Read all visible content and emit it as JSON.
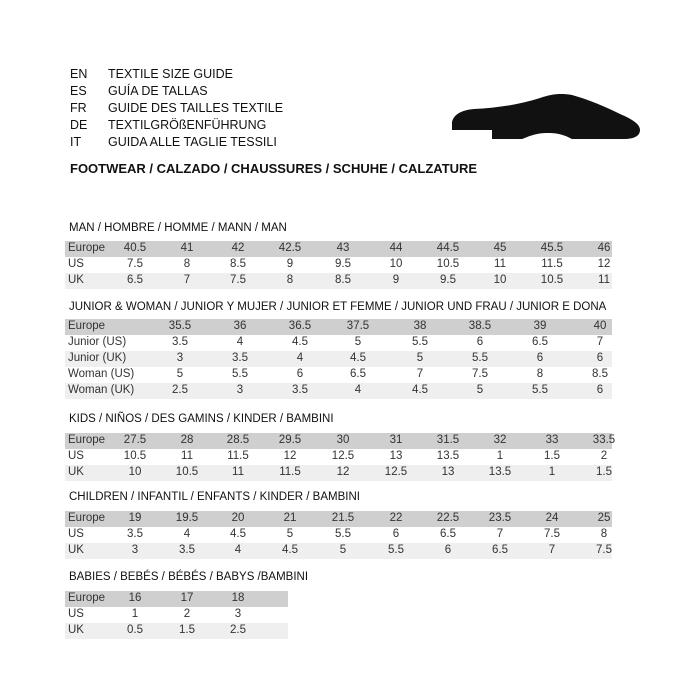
{
  "header": {
    "languages": [
      {
        "code": "EN",
        "name": "TEXTILE SIZE GUIDE"
      },
      {
        "code": "ES",
        "name": "GUÍA DE TALLAS"
      },
      {
        "code": "FR",
        "name": "GUIDE DES TAILLES TEXTILE"
      },
      {
        "code": "DE",
        "name": "TEXTILGRÖßENFÜHRUNG"
      },
      {
        "code": "IT",
        "name": "GUIDA ALLE TAGLIE TESSILI"
      }
    ],
    "footwear": "FOOTWEAR / CALZADO / CHAUSSURES / SCHUHE / CALZATURE",
    "icon": "shoe-silhouette-icon"
  },
  "colors": {
    "header_row": "#cfcfcf",
    "alt_row": "#efefef"
  },
  "sections": [
    {
      "title": "MAN / HOMBRE / HOMME / MANN / MAN",
      "rows": [
        {
          "label": "Europe",
          "values": [
            "40.5",
            "41",
            "42",
            "42.5",
            "43",
            "44",
            "44.5",
            "45",
            "45.5",
            "46"
          ]
        },
        {
          "label": "US",
          "values": [
            "7.5",
            "8",
            "8.5",
            "9",
            "9.5",
            "10",
            "10.5",
            "11",
            "11.5",
            "12"
          ]
        },
        {
          "label": "UK",
          "values": [
            "6.5",
            "7",
            "7.5",
            "8",
            "8.5",
            "9",
            "9.5",
            "10",
            "10.5",
            "11"
          ]
        }
      ]
    },
    {
      "title": "JUNIOR & WOMAN / JUNIOR Y MUJER / JUNIOR ET FEMME / JUNIOR UND FRAU / JUNIOR E DONA",
      "rows": [
        {
          "label": "Europe",
          "values": [
            "35.5",
            "36",
            "36.5",
            "37.5",
            "38",
            "38.5",
            "39",
            "40"
          ]
        },
        {
          "label": "Junior (US)",
          "values": [
            "3.5",
            "4",
            "4.5",
            "5",
            "5.5",
            "6",
            "6.5",
            "7"
          ]
        },
        {
          "label": "Junior (UK)",
          "values": [
            "3",
            "3.5",
            "4",
            "4.5",
            "5",
            "5.5",
            "6",
            "6"
          ]
        },
        {
          "label": "Woman (US)",
          "values": [
            "5",
            "5.5",
            "6",
            "6.5",
            "7",
            "7.5",
            "8",
            "8.5"
          ]
        },
        {
          "label": "Woman (UK)",
          "values": [
            "2.5",
            "3",
            "3.5",
            "4",
            "4.5",
            "5",
            "5.5",
            "6"
          ]
        }
      ]
    },
    {
      "title": "KIDS / NIÑOS / DES GAMINS / KINDER / BAMBINI",
      "rows": [
        {
          "label": "Europe",
          "values": [
            "27.5",
            "28",
            "28.5",
            "29.5",
            "30",
            "31",
            "31.5",
            "32",
            "33",
            "33.5"
          ]
        },
        {
          "label": "US",
          "values": [
            "10.5",
            "11",
            "11.5",
            "12",
            "12.5",
            "13",
            "13.5",
            "1",
            "1.5",
            "2"
          ]
        },
        {
          "label": "UK",
          "values": [
            "10",
            "10.5",
            "11",
            "11.5",
            "12",
            "12.5",
            "13",
            "13.5",
            "1",
            "1.5"
          ]
        }
      ]
    },
    {
      "title": "CHILDREN / INFANTIL / ENFANTS / KINDER / BAMBINI",
      "rows": [
        {
          "label": "Europe",
          "values": [
            "19",
            "19.5",
            "20",
            "21",
            "21.5",
            "22",
            "22.5",
            "23.5",
            "24",
            "25"
          ]
        },
        {
          "label": "US",
          "values": [
            "3.5",
            "4",
            "4.5",
            "5",
            "5.5",
            "6",
            "6.5",
            "7",
            "7.5",
            "8"
          ]
        },
        {
          "label": "UK",
          "values": [
            "3",
            "3.5",
            "4",
            "4.5",
            "5",
            "5.5",
            "6",
            "6.5",
            "7",
            "7.5"
          ]
        }
      ]
    },
    {
      "title": "BABIES  / BEBÉS / BÉBÉS / BABYS /BAMBINI",
      "rows": [
        {
          "label": "Europe",
          "values": [
            "16",
            "17",
            "18"
          ]
        },
        {
          "label": "US",
          "values": [
            "1",
            "2",
            "3"
          ]
        },
        {
          "label": "UK",
          "values": [
            "0.5",
            "1.5",
            "2.5"
          ]
        }
      ]
    }
  ]
}
